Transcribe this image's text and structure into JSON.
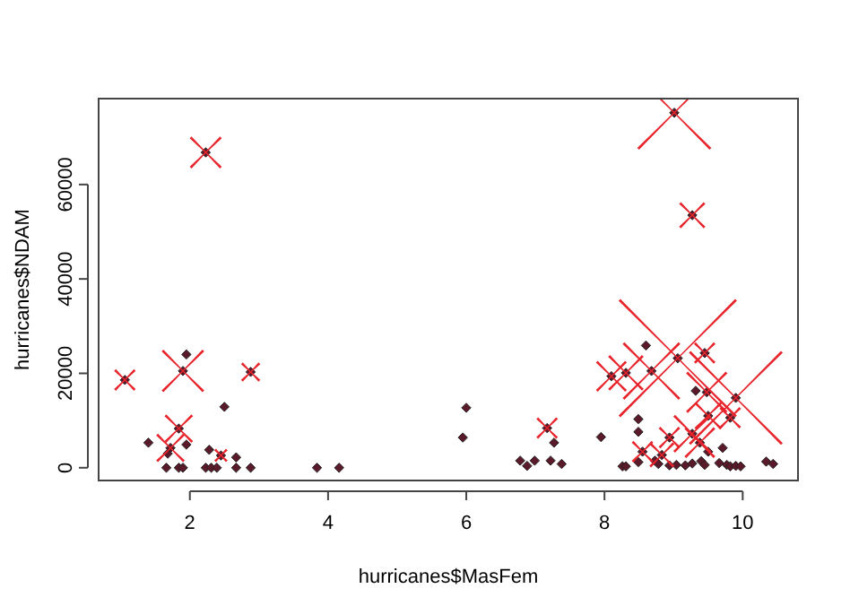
{
  "chart_data": {
    "type": "scatter",
    "xlabel": "hurricanes$MasFem",
    "ylabel": "hurricanes$NDAM",
    "xlim": [
      0.68,
      10.8
    ],
    "ylim": [
      -2700,
      78200
    ],
    "xticks": [
      2,
      4,
      6,
      8,
      10
    ],
    "yticks": [
      0,
      20000,
      40000,
      60000
    ],
    "grid": false,
    "series": [
      {
        "type": "scatter",
        "marker": "diamond",
        "color": "#5a1a2a",
        "x": [
          1.06,
          1.9,
          1.95,
          2.23,
          2.88,
          2.5,
          1.4,
          1.84,
          1.72,
          1.68,
          1.95,
          2.28,
          2.45,
          2.67,
          1.66,
          1.84,
          1.9,
          2.23,
          2.31,
          2.39,
          2.67,
          2.88,
          3.84,
          4.16,
          6.0,
          5.95,
          7.17,
          7.27,
          6.78,
          6.88,
          6.99,
          7.22,
          7.38,
          7.95,
          9.01,
          9.27,
          8.1,
          8.31,
          8.68,
          9.06,
          9.9,
          9.48,
          9.45,
          8.6,
          9.32,
          9.5,
          9.82,
          9.27,
          9.38,
          8.94,
          8.49,
          8.49,
          9.71,
          8.83,
          8.55,
          9.5,
          8.26,
          8.31,
          8.49,
          8.73,
          8.78,
          8.94,
          9.04,
          9.17,
          9.27,
          9.4,
          9.45,
          9.66,
          9.77,
          9.82,
          9.9,
          9.97,
          10.34,
          10.44
        ],
        "values": [
          18600,
          20500,
          24000,
          66800,
          20300,
          12900,
          5300,
          8300,
          4200,
          3000,
          4900,
          3800,
          2600,
          2200,
          0,
          0,
          0,
          0,
          0,
          0,
          0,
          0,
          0,
          0,
          12700,
          6400,
          8400,
          5300,
          1500,
          400,
          1500,
          1500,
          800,
          6500,
          75200,
          53500,
          19400,
          20100,
          20500,
          23200,
          14800,
          16000,
          24300,
          25900,
          16300,
          11000,
          10600,
          7200,
          5300,
          6400,
          10300,
          7600,
          4200,
          2700,
          3400,
          3400,
          300,
          300,
          1200,
          1500,
          800,
          500,
          600,
          500,
          900,
          1400,
          600,
          1000,
          600,
          300,
          400,
          300,
          1300,
          800
        ]
      },
      {
        "type": "bubble",
        "marker": "cross",
        "color": "#e8242c",
        "x": [
          1.06,
          1.9,
          2.23,
          2.88,
          1.84,
          1.72,
          2.45,
          7.17,
          9.01,
          9.27,
          8.1,
          8.31,
          8.68,
          9.06,
          9.9,
          9.48,
          9.45,
          9.5,
          9.82,
          9.27,
          9.38,
          8.94,
          8.83,
          8.55
        ],
        "values": [
          18600,
          20500,
          66800,
          20300,
          8300,
          4200,
          2600,
          8400,
          75200,
          53500,
          19400,
          20100,
          20500,
          23200,
          14800,
          16000,
          24300,
          11000,
          10600,
          7200,
          5300,
          6400,
          2700,
          3400
        ],
        "sizes": [
          0.17,
          0.35,
          0.26,
          0.15,
          0.23,
          0.23,
          0.1,
          0.17,
          0.62,
          0.21,
          0.25,
          0.29,
          0.48,
          1,
          0.79,
          0.34,
          0.17,
          0.22,
          0.17,
          0.31,
          0.25,
          0.17,
          0.2,
          0.17
        ]
      }
    ]
  }
}
